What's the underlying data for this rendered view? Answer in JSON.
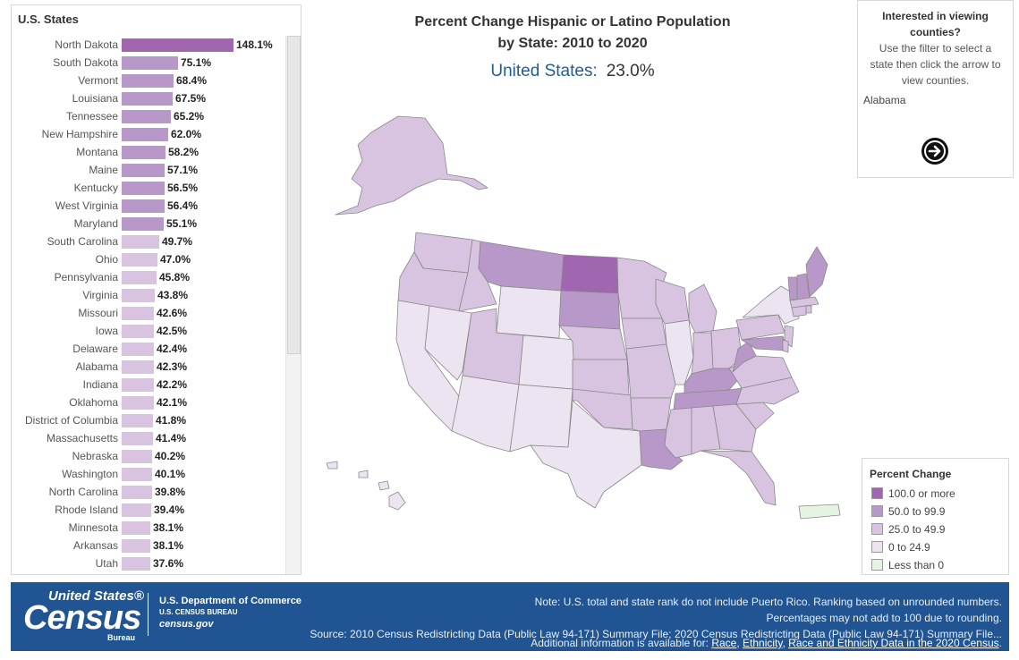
{
  "ranking": {
    "title": "U.S. States",
    "rows": [
      {
        "state": "North Dakota",
        "value": "148.1%",
        "num": 148.1,
        "color": "#a067b0"
      },
      {
        "state": "South Dakota",
        "value": "75.1%",
        "num": 75.1,
        "color": "#b898c8"
      },
      {
        "state": "Vermont",
        "value": "68.4%",
        "num": 68.4,
        "color": "#b898c8"
      },
      {
        "state": "Louisiana",
        "value": "67.5%",
        "num": 67.5,
        "color": "#b898c8"
      },
      {
        "state": "Tennessee",
        "value": "65.2%",
        "num": 65.2,
        "color": "#b898c8"
      },
      {
        "state": "New Hampshire",
        "value": "62.0%",
        "num": 62.0,
        "color": "#b898c8"
      },
      {
        "state": "Montana",
        "value": "58.2%",
        "num": 58.2,
        "color": "#b898c8"
      },
      {
        "state": "Maine",
        "value": "57.1%",
        "num": 57.1,
        "color": "#b898c8"
      },
      {
        "state": "Kentucky",
        "value": "56.5%",
        "num": 56.5,
        "color": "#b898c8"
      },
      {
        "state": "West Virginia",
        "value": "56.4%",
        "num": 56.4,
        "color": "#b898c8"
      },
      {
        "state": "Maryland",
        "value": "55.1%",
        "num": 55.1,
        "color": "#b898c8"
      },
      {
        "state": "South Carolina",
        "value": "49.7%",
        "num": 49.7,
        "color": "#d8c4e0"
      },
      {
        "state": "Ohio",
        "value": "47.0%",
        "num": 47.0,
        "color": "#d8c4e0"
      },
      {
        "state": "Pennsylvania",
        "value": "45.8%",
        "num": 45.8,
        "color": "#d8c4e0"
      },
      {
        "state": "Virginia",
        "value": "43.8%",
        "num": 43.8,
        "color": "#d8c4e0"
      },
      {
        "state": "Missouri",
        "value": "42.6%",
        "num": 42.6,
        "color": "#d8c4e0"
      },
      {
        "state": "Iowa",
        "value": "42.5%",
        "num": 42.5,
        "color": "#d8c4e0"
      },
      {
        "state": "Delaware",
        "value": "42.4%",
        "num": 42.4,
        "color": "#d8c4e0"
      },
      {
        "state": "Alabama",
        "value": "42.3%",
        "num": 42.3,
        "color": "#d8c4e0"
      },
      {
        "state": "Indiana",
        "value": "42.2%",
        "num": 42.2,
        "color": "#d8c4e0"
      },
      {
        "state": "Oklahoma",
        "value": "42.1%",
        "num": 42.1,
        "color": "#d8c4e0"
      },
      {
        "state": "District of Columbia",
        "value": "41.8%",
        "num": 41.8,
        "color": "#d8c4e0"
      },
      {
        "state": "Massachusetts",
        "value": "41.4%",
        "num": 41.4,
        "color": "#d8c4e0"
      },
      {
        "state": "Nebraska",
        "value": "40.2%",
        "num": 40.2,
        "color": "#d8c4e0"
      },
      {
        "state": "Washington",
        "value": "40.1%",
        "num": 40.1,
        "color": "#d8c4e0"
      },
      {
        "state": "North Carolina",
        "value": "39.8%",
        "num": 39.8,
        "color": "#d8c4e0"
      },
      {
        "state": "Rhode Island",
        "value": "39.4%",
        "num": 39.4,
        "color": "#d8c4e0"
      },
      {
        "state": "Minnesota",
        "value": "38.1%",
        "num": 38.1,
        "color": "#d8c4e0"
      },
      {
        "state": "Arkansas",
        "value": "38.1%",
        "num": 38.1,
        "color": "#d8c4e0"
      },
      {
        "state": "Utah",
        "value": "37.6%",
        "num": 37.6,
        "color": "#d8c4e0"
      }
    ]
  },
  "title": {
    "line1": "Percent Change Hispanic or Latino Population",
    "line2": "by State: 2010 to 2020",
    "us_label": "United States:",
    "us_value": "23.0%"
  },
  "info": {
    "heading_line1": "Interested in viewing",
    "heading_line2": "counties?",
    "body_line1": "Use the filter to select a",
    "body_line2": "state then click the arrow to",
    "body_line3": "view counties.",
    "selected_state": "Alabama"
  },
  "legend": {
    "title": "Percent Change",
    "items": [
      {
        "label": "100.0 or more",
        "color": "#a067b0"
      },
      {
        "label": "50.0 to 99.9",
        "color": "#b898c8"
      },
      {
        "label": "25.0 to 49.9",
        "color": "#d8c4e0"
      },
      {
        "label": "0 to 24.9",
        "color": "#ede4f1"
      },
      {
        "label": "Less than 0",
        "color": "#e5f4e0"
      }
    ]
  },
  "colors": {
    "c100": "#a067b0",
    "c50": "#b898c8",
    "c25": "#d8c4e0",
    "c0": "#ede4f1",
    "neg": "#e5f4e0",
    "footer": "#205493"
  },
  "footer": {
    "logo_us": "United States®",
    "logo_census": "Census",
    "logo_bureau": "Bureau",
    "dept1": "U.S. Department of Commerce",
    "dept2": "U.S. CENSUS BUREAU",
    "dept3": "census.gov",
    "note1": "Note: U.S. total and state rank do not include Puerto Rico. Ranking based on unrounded numbers.",
    "note2": "Percentages may not add to 100 due to rounding.",
    "source": "Source: 2010 Census Redistricting Data (Public Law 94-171) Summary File; 2020 Census Redistricting Data (Public Law 94-171) Summary File...",
    "additional_prefix": "Additional information is available for:",
    "link_race": "Race",
    "link_ethnicity": "Ethnicity",
    "link_data": "Race and Ethnicity Data in the 2020 Census"
  }
}
